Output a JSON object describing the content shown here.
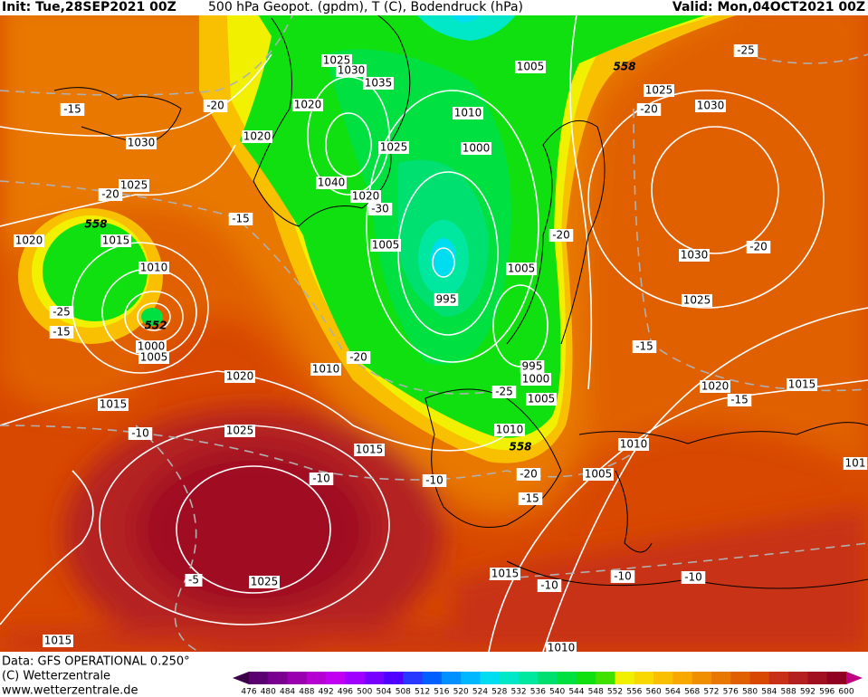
{
  "header": {
    "init": "Init: Tue,28SEP2021 00Z",
    "title": "500 hPa Geopot. (gpdm), T (C), Bodendruck (hPa)",
    "valid": "Valid: Mon,04OCT2021 00Z"
  },
  "footer": {
    "data": "Data: GFS OPERATIONAL 0.250°",
    "copyright": "(C) Wetterzentrale",
    "url": "www.wetterzentrale.de"
  },
  "map_labels": [
    "1025",
    "1030",
    "1035",
    "1020",
    "1020",
    "1030",
    "1025",
    "1040",
    "1025",
    "1020",
    "-30",
    "1010",
    "1000",
    "1005",
    "1005",
    "995",
    "1005",
    "995",
    "1000",
    "1005",
    "1010",
    "558",
    "558",
    "1025",
    "1030",
    "-20",
    "-25",
    "-20",
    "-20",
    "1030",
    "1025",
    "-15",
    "1020",
    "-15",
    "1015",
    "1010",
    "1005",
    "1015",
    "1010",
    "-20",
    "-25",
    "-20",
    "-15",
    "-10",
    "-10",
    "-15",
    "-20",
    "-15",
    "-20",
    "1020",
    "558",
    "1015",
    "1010",
    "-25",
    "-15",
    "552",
    "1000",
    "1005",
    "1020",
    "1015",
    "1025",
    "-10",
    "-5",
    "1025",
    "1015",
    "-10",
    "-10",
    "-10",
    "1015",
    "1010",
    "101"
  ],
  "legend": {
    "values": [
      476,
      480,
      484,
      488,
      492,
      496,
      500,
      504,
      508,
      512,
      516,
      520,
      524,
      528,
      532,
      536,
      540,
      544,
      548,
      552,
      556,
      560,
      564,
      568,
      572,
      576,
      580,
      584,
      588,
      592,
      596,
      600
    ],
    "colors": [
      "#3c0048",
      "#5a0070",
      "#7a0090",
      "#9a00b0",
      "#b400d0",
      "#c000f0",
      "#a000ff",
      "#7800ff",
      "#5000ff",
      "#2838ff",
      "#0060ff",
      "#0090ff",
      "#00b8ff",
      "#00dcf0",
      "#00e8c8",
      "#00e8a0",
      "#00e070",
      "#00e040",
      "#10e010",
      "#40e000",
      "#f0f000",
      "#f8d800",
      "#f8c000",
      "#f8a800",
      "#f09000",
      "#e87800",
      "#e06000",
      "#d84800",
      "#c83018",
      "#b42020",
      "#a01020",
      "#900020",
      "#c00080"
    ]
  }
}
